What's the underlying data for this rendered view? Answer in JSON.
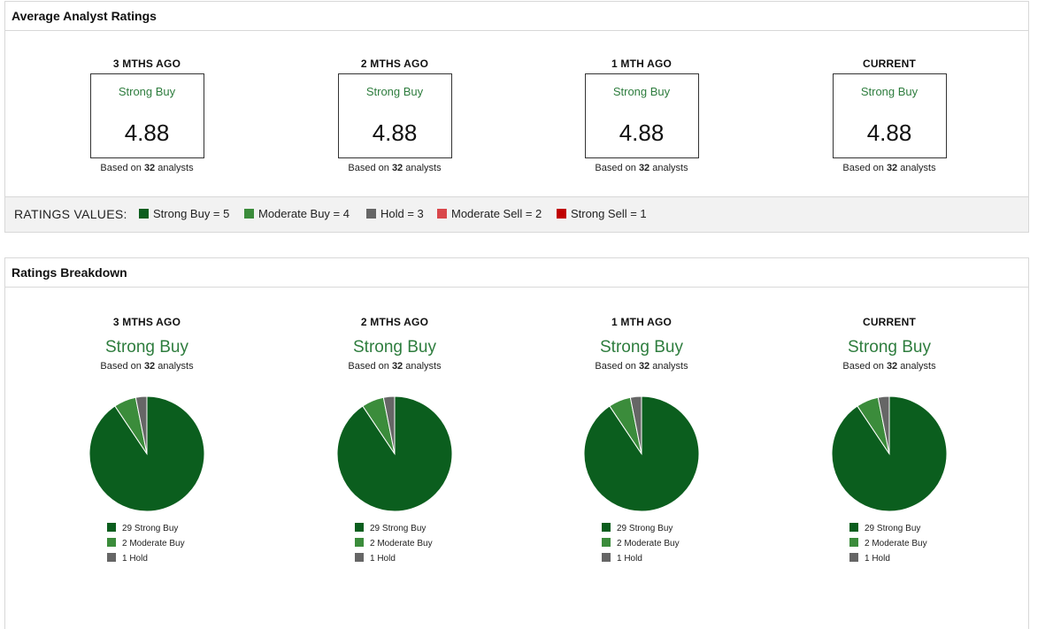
{
  "average_panel": {
    "title": "Average Analyst Ratings",
    "periods": [
      {
        "label": "3 MTHS AGO",
        "rating": "Strong Buy",
        "score": "4.88",
        "based_prefix": "Based on ",
        "analysts": "32",
        "based_suffix": " analysts"
      },
      {
        "label": "2 MTHS AGO",
        "rating": "Strong Buy",
        "score": "4.88",
        "based_prefix": "Based on ",
        "analysts": "32",
        "based_suffix": " analysts"
      },
      {
        "label": "1 MTH AGO",
        "rating": "Strong Buy",
        "score": "4.88",
        "based_prefix": "Based on ",
        "analysts": "32",
        "based_suffix": " analysts"
      },
      {
        "label": "CURRENT",
        "rating": "Strong Buy",
        "score": "4.88",
        "based_prefix": "Based on ",
        "analysts": "32",
        "based_suffix": " analysts"
      }
    ],
    "ratings_values": {
      "title": "RATINGS VALUES:",
      "items": [
        {
          "label": "Strong Buy = 5",
          "color": "#0b5e1e"
        },
        {
          "label": "Moderate Buy = 4",
          "color": "#3b8c3b"
        },
        {
          "label": "Hold = 3",
          "color": "#666666"
        },
        {
          "label": "Moderate Sell = 2",
          "color": "#d9474b"
        },
        {
          "label": "Strong Sell = 1",
          "color": "#c00000"
        }
      ]
    }
  },
  "breakdown_panel": {
    "title": "Ratings Breakdown"
  },
  "chart_data": [
    {
      "type": "pie",
      "title": "3 MTHS AGO",
      "subtitle": "Strong Buy",
      "based_prefix": "Based on ",
      "analysts": "32",
      "based_suffix": " analysts",
      "slices": [
        {
          "label": "29 Strong Buy",
          "value": 29,
          "color": "#0b5e1e"
        },
        {
          "label": "2 Moderate Buy",
          "value": 2,
          "color": "#3b8c3b"
        },
        {
          "label": "1 Hold",
          "value": 1,
          "color": "#666666"
        }
      ]
    },
    {
      "type": "pie",
      "title": "2 MTHS AGO",
      "subtitle": "Strong Buy",
      "based_prefix": "Based on ",
      "analysts": "32",
      "based_suffix": " analysts",
      "slices": [
        {
          "label": "29 Strong Buy",
          "value": 29,
          "color": "#0b5e1e"
        },
        {
          "label": "2 Moderate Buy",
          "value": 2,
          "color": "#3b8c3b"
        },
        {
          "label": "1 Hold",
          "value": 1,
          "color": "#666666"
        }
      ]
    },
    {
      "type": "pie",
      "title": "1 MTH AGO",
      "subtitle": "Strong Buy",
      "based_prefix": "Based on ",
      "analysts": "32",
      "based_suffix": " analysts",
      "slices": [
        {
          "label": "29 Strong Buy",
          "value": 29,
          "color": "#0b5e1e"
        },
        {
          "label": "2 Moderate Buy",
          "value": 2,
          "color": "#3b8c3b"
        },
        {
          "label": "1 Hold",
          "value": 1,
          "color": "#666666"
        }
      ]
    },
    {
      "type": "pie",
      "title": "CURRENT",
      "subtitle": "Strong Buy",
      "based_prefix": "Based on ",
      "analysts": "32",
      "based_suffix": " analysts",
      "slices": [
        {
          "label": "29 Strong Buy",
          "value": 29,
          "color": "#0b5e1e"
        },
        {
          "label": "2 Moderate Buy",
          "value": 2,
          "color": "#3b8c3b"
        },
        {
          "label": "1 Hold",
          "value": 1,
          "color": "#666666"
        }
      ]
    }
  ]
}
